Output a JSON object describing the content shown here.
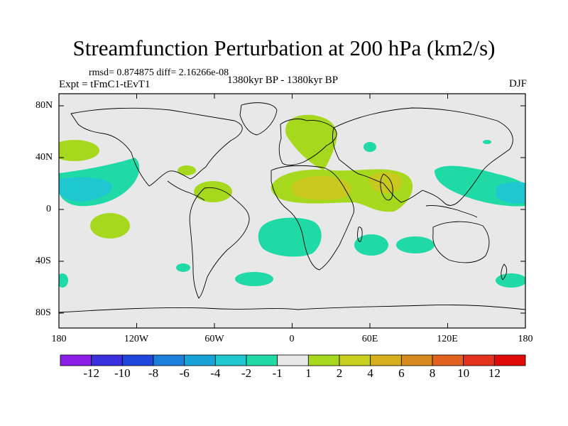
{
  "title": "Streamfunction Perturbation at 200 hPa (km2/s)",
  "stats": "rmsd= 0.874875 diff= 2.16266e-08",
  "experiment": "Expt = tFmC1-tEvT1",
  "period": "1380kyr BP - 1380kyr BP",
  "season": "DJF",
  "y_axis": {
    "labels": [
      "80N",
      "40N",
      "0",
      "40S",
      "80S"
    ]
  },
  "x_axis": {
    "labels": [
      "180",
      "120W",
      "60W",
      "0",
      "60E",
      "120E",
      "180"
    ]
  },
  "colorbar": {
    "labels": [
      "-12",
      "-10",
      "-8",
      "-6",
      "-4",
      "-2",
      "-1",
      "1",
      "2",
      "4",
      "6",
      "8",
      "10",
      "12"
    ],
    "colors": [
      "#8c1fe6",
      "#3a2fdc",
      "#2146dc",
      "#1d7fdc",
      "#17a3d6",
      "#1fc8d0",
      "#1fd9a6",
      "#e8e8e8",
      "#a6d81e",
      "#c8d01e",
      "#d8b01e",
      "#d88a1e",
      "#e0621e",
      "#e2321e",
      "#e00a0a"
    ]
  },
  "colors": {
    "background": "#e8e8e8",
    "positive_weak": "#a6d81e",
    "positive_mid": "#c8c81e",
    "negative_weak": "#1fd9a6",
    "negative_mid": "#1fc8d0"
  }
}
